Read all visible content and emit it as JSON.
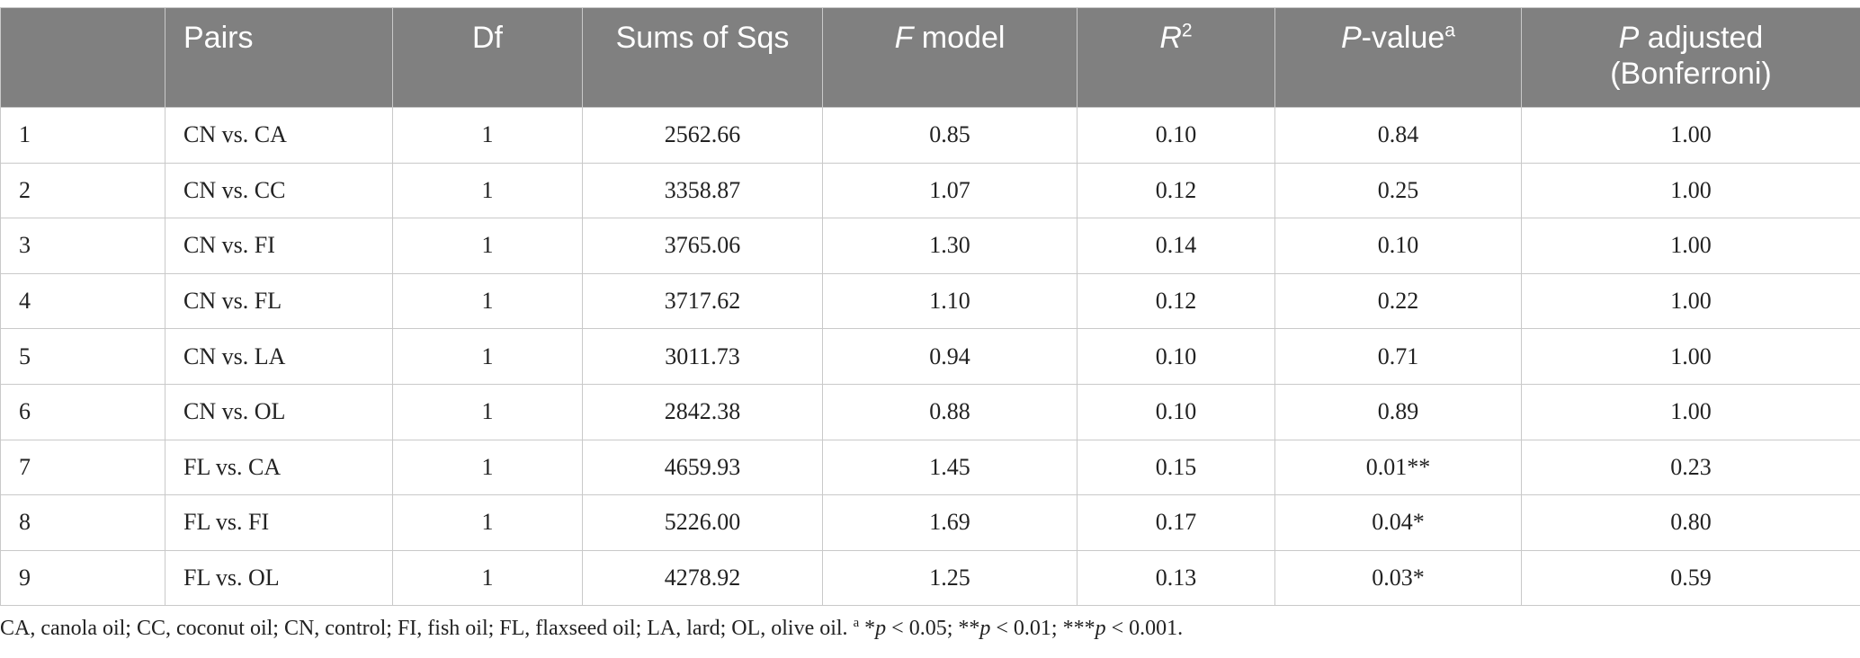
{
  "table": {
    "headers": {
      "num": "",
      "pairs": "Pairs",
      "df": "Df",
      "sums": "Sums of Sqs",
      "f_italic": "F",
      "f_rest": " model",
      "r2_italic": "R",
      "r2_sup": "2",
      "pvalue_italic": "P",
      "pvalue_rest": "-value",
      "pvalue_sup": "a",
      "padj_italic": "P",
      "padj_rest": " adjusted",
      "padj_line2": "(Bonferroni)"
    },
    "rows": [
      {
        "num": "1",
        "pair": "CN vs. CA",
        "df": "1",
        "ss": "2562.66",
        "f": "0.85",
        "r2": "0.10",
        "p": "0.84",
        "padj": "1.00"
      },
      {
        "num": "2",
        "pair": "CN vs. CC",
        "df": "1",
        "ss": "3358.87",
        "f": "1.07",
        "r2": "0.12",
        "p": "0.25",
        "padj": "1.00"
      },
      {
        "num": "3",
        "pair": "CN vs. FI",
        "df": "1",
        "ss": "3765.06",
        "f": "1.30",
        "r2": "0.14",
        "p": "0.10",
        "padj": "1.00"
      },
      {
        "num": "4",
        "pair": "CN vs. FL",
        "df": "1",
        "ss": "3717.62",
        "f": "1.10",
        "r2": "0.12",
        "p": "0.22",
        "padj": "1.00"
      },
      {
        "num": "5",
        "pair": "CN vs. LA",
        "df": "1",
        "ss": "3011.73",
        "f": "0.94",
        "r2": "0.10",
        "p": "0.71",
        "padj": "1.00"
      },
      {
        "num": "6",
        "pair": "CN vs. OL",
        "df": "1",
        "ss": "2842.38",
        "f": "0.88",
        "r2": "0.10",
        "p": "0.89",
        "padj": "1.00"
      },
      {
        "num": "7",
        "pair": "FL vs. CA",
        "df": "1",
        "ss": "4659.93",
        "f": "1.45",
        "r2": "0.15",
        "p": "0.01**",
        "padj": "0.23"
      },
      {
        "num": "8",
        "pair": "FL vs. FI",
        "df": "1",
        "ss": "5226.00",
        "f": "1.69",
        "r2": "0.17",
        "p": "0.04*",
        "padj": "0.80"
      },
      {
        "num": "9",
        "pair": "FL vs. OL",
        "df": "1",
        "ss": "4278.92",
        "f": "1.25",
        "r2": "0.13",
        "p": "0.03*",
        "padj": "0.59"
      }
    ]
  },
  "footnote": {
    "text": "CA, canola oil; CC, coconut oil; CN, control; FI, fish oil; FL, flaxseed oil; LA, lard; OL, olive oil. ",
    "sup": "a",
    "s1": " *",
    "p1": "p",
    "t1": " < 0.05; **",
    "p2": "p",
    "t2": " < 0.01; ***",
    "p3": "p",
    "t3": " < 0.001."
  },
  "colors": {
    "header_bg": "#808080",
    "header_text": "#ffffff",
    "grid": "#c9c9c9",
    "body_text": "#222222"
  }
}
